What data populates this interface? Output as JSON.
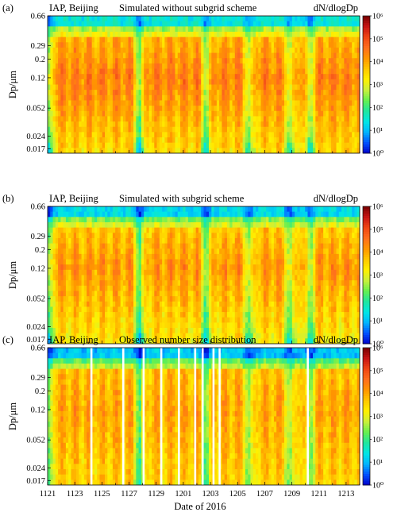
{
  "chart_data": [
    {
      "type": "heatmap",
      "panel_label": "(a)",
      "site": "IAP, Beijing",
      "title": "Simulated without subgrid scheme",
      "colorbar_label": "dN/dlogDp",
      "ylabel": "Dp/μm",
      "xlabel": "",
      "yscale": "log",
      "ylim": [
        0.015,
        0.66
      ],
      "yticks": [
        "0.66",
        "0.29",
        "0.2",
        "0.12",
        "0.052",
        "0.024",
        "0.017"
      ],
      "xticks": [],
      "color_range": [
        1,
        1000000
      ],
      "colorbar_ticks": [
        "10⁰",
        "10¹",
        "10²",
        "10³",
        "10⁴",
        "10⁵",
        "10⁶"
      ],
      "approx_peak_dndlogdp": 50000,
      "data_gaps_days": []
    },
    {
      "type": "heatmap",
      "panel_label": "(b)",
      "site": "IAP, Beijing",
      "title": "Simulated with subgrid scheme",
      "colorbar_label": "dN/dlogDp",
      "ylabel": "Dp/μm",
      "xlabel": "",
      "yscale": "log",
      "ylim": [
        0.015,
        0.66
      ],
      "yticks": [
        "0.66",
        "0.29",
        "0.2",
        "0.12",
        "0.052",
        "0.024",
        "0.017"
      ],
      "xticks": [],
      "color_range": [
        1,
        1000000
      ],
      "colorbar_ticks": [
        "10⁰",
        "10¹",
        "10²",
        "10³",
        "10⁴",
        "10⁵",
        "10⁶"
      ],
      "approx_peak_dndlogdp": 30000,
      "data_gaps_days": []
    },
    {
      "type": "heatmap",
      "panel_label": "(c)",
      "site": "IAP, Beijing",
      "title": "Observed number size distribution",
      "colorbar_label": "dN/dlogDp",
      "ylabel": "Dp/μm",
      "xlabel": "Date of 2016",
      "yscale": "log",
      "ylim": [
        0.015,
        0.66
      ],
      "yticks": [
        "0.66",
        "0.29",
        "0.2",
        "0.12",
        "0.052",
        "0.024",
        "0.017"
      ],
      "xticks": [
        "1121",
        "1123",
        "1125",
        "1127",
        "1129",
        "1201",
        "1203",
        "1205",
        "1207",
        "1209",
        "1211",
        "1213"
      ],
      "color_range": [
        1,
        1000000
      ],
      "colorbar_ticks": [
        "10⁰",
        "10¹",
        "10²",
        "10³",
        "10⁴",
        "10⁵",
        "10⁶"
      ],
      "approx_peak_dndlogdp": 20000,
      "data_gaps_days": [
        3.15,
        5.5,
        7.0,
        8.3,
        9.6,
        10.8,
        11.35,
        12.15,
        12.6,
        19.1
      ]
    }
  ],
  "colors": {
    "colormap": [
      "#0000c8",
      "#0050ff",
      "#00b4ff",
      "#00e6e6",
      "#1ee6a0",
      "#64f050",
      "#c8f03c",
      "#fff000",
      "#ffc800",
      "#ff9600",
      "#ff6e1e",
      "#f04614",
      "#c81414",
      "#780000"
    ]
  }
}
